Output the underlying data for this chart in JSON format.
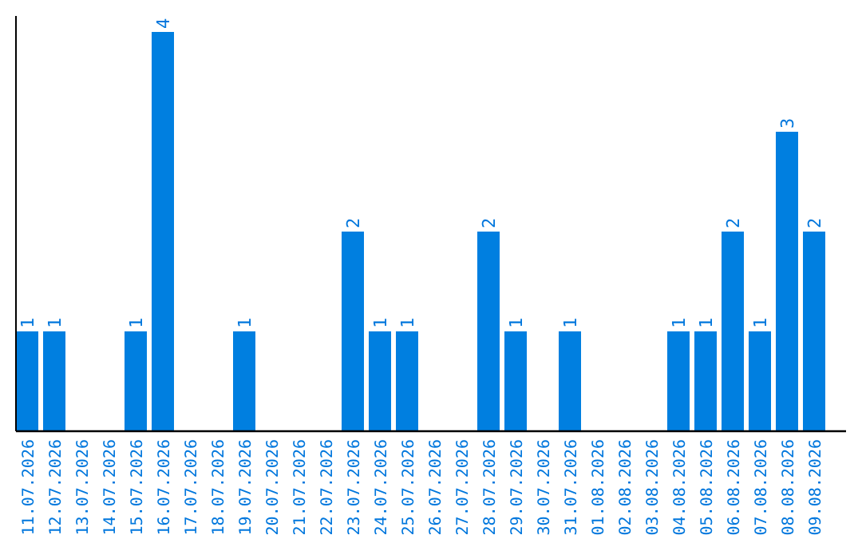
{
  "chart_data": {
    "type": "bar",
    "categories": [
      "11.07.2026",
      "12.07.2026",
      "13.07.2026",
      "14.07.2026",
      "15.07.2026",
      "16.07.2026",
      "17.07.2026",
      "18.07.2026",
      "19.07.2026",
      "20.07.2026",
      "21.07.2026",
      "22.07.2026",
      "23.07.2026",
      "24.07.2026",
      "25.07.2026",
      "26.07.2026",
      "27.07.2026",
      "28.07.2026",
      "29.07.2026",
      "30.07.2026",
      "31.07.2026",
      "01.08.2026",
      "02.08.2026",
      "03.08.2026",
      "04.08.2026",
      "05.08.2026",
      "06.08.2026",
      "07.08.2026",
      "08.08.2026",
      "09.08.2026"
    ],
    "values": [
      1,
      1,
      0,
      0,
      1,
      4,
      0,
      0,
      1,
      0,
      0,
      0,
      2,
      1,
      1,
      0,
      0,
      2,
      1,
      0,
      1,
      0,
      0,
      0,
      1,
      1,
      2,
      1,
      3,
      2
    ],
    "value_labels": [
      "1",
      "1",
      null,
      null,
      "1",
      "4",
      null,
      null,
      "1",
      null,
      null,
      null,
      "2",
      "1",
      "1",
      null,
      null,
      "2",
      "1",
      null,
      "1",
      null,
      null,
      null,
      "1",
      "1",
      "2",
      "1",
      "3",
      "2"
    ],
    "color": "#007fe0",
    "ylim": [
      0,
      4.16
    ],
    "tick_labels": "x"
  }
}
